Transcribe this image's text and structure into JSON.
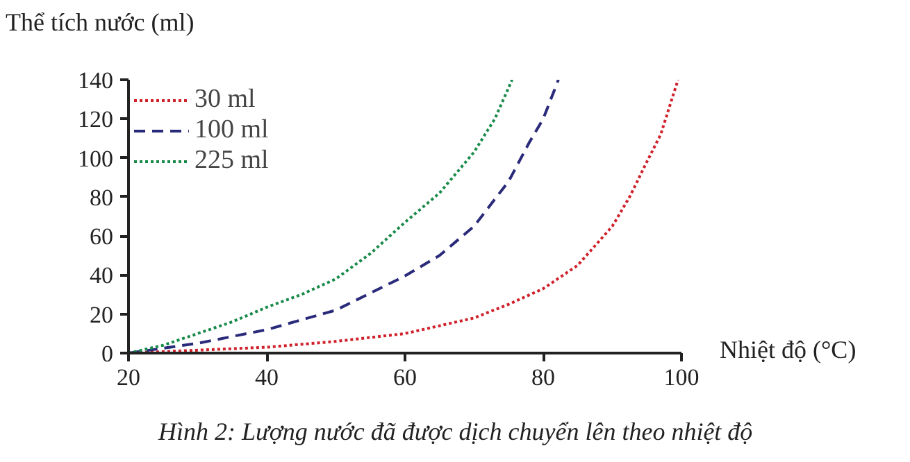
{
  "chart_data": {
    "type": "line",
    "ylabel": "Thể tích nước (ml)",
    "xlabel": "Nhiệt độ (°C)",
    "annotations": [
      "Hình 2: Lượng nước đã được dịch chuyển lên theo nhiệt độ"
    ],
    "xlim": [
      20,
      100
    ],
    "ylim": [
      0,
      140
    ],
    "xticks": [
      20,
      40,
      60,
      80,
      100
    ],
    "yticks": [
      0,
      20,
      40,
      60,
      80,
      100,
      120,
      140
    ],
    "grid": false,
    "legend": "top left",
    "marker": "none",
    "series": [
      {
        "name": "30 ml",
        "color": "#d0202a",
        "line_style": "dotted",
        "x": [
          20,
          30,
          40,
          50,
          60,
          70,
          75,
          80,
          85,
          90,
          92.5,
          95,
          97,
          99.5
        ],
        "values": [
          0,
          1.5,
          3,
          6,
          10,
          18,
          25,
          33,
          45,
          65,
          80,
          98,
          112,
          140
        ]
      },
      {
        "name": "100 ml",
        "color": "#2a2a7a",
        "line_style": "dashed",
        "x": [
          20,
          30,
          40,
          50,
          60,
          65,
          70,
          75,
          78,
          80,
          82.2
        ],
        "values": [
          0,
          5,
          12,
          22,
          39.5,
          50,
          65,
          88,
          108,
          120,
          140
        ]
      },
      {
        "name": "225 ml",
        "color": "#1a8a4a",
        "line_style": "dotted",
        "x": [
          20,
          25,
          30,
          35,
          40,
          45,
          50,
          55,
          60,
          65,
          70,
          73,
          75.5
        ],
        "values": [
          0,
          4,
          10,
          16,
          23.5,
          30,
          38,
          51,
          67,
          82,
          103,
          120,
          140
        ]
      }
    ]
  }
}
